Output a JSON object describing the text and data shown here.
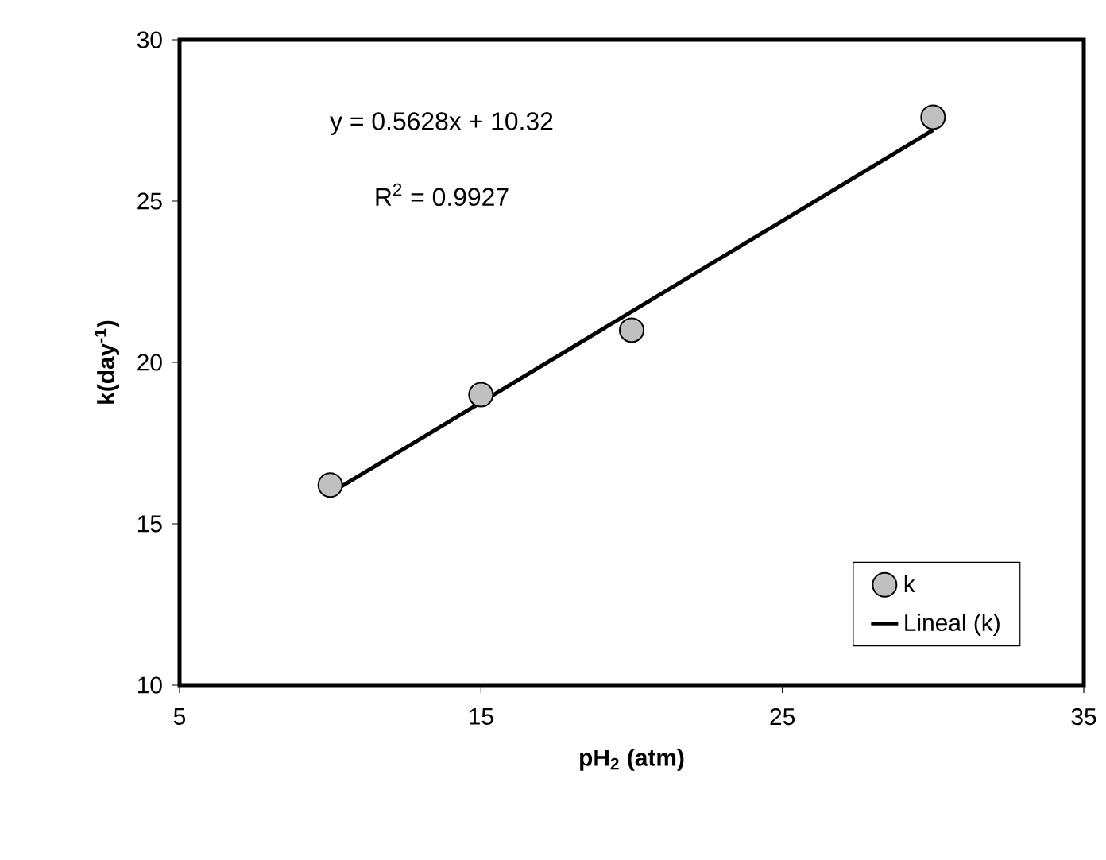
{
  "chart_data": {
    "type": "scatter",
    "xlabel": "pH$_{2}$ (atm)",
    "ylabel": "k(day$^{-1}$)",
    "annotations": [
      "y = 0.5628x + 10.32",
      "R$^{2}$ = 0.9927"
    ],
    "series": [
      {
        "name": "k",
        "color": "#c0c0c0",
        "marker": "circle",
        "x": [
          10,
          15,
          20,
          30
        ],
        "values": [
          16.2,
          19.0,
          21.0,
          27.6
        ]
      },
      {
        "name": "Lineal (k)",
        "type": "line",
        "color": "#000000",
        "marker": "none",
        "line_style": "solid",
        "x": [
          10,
          30
        ],
        "values": [
          15.95,
          27.2
        ]
      }
    ],
    "xlim": [
      5,
      35
    ],
    "xticks": [
      5,
      15,
      25,
      35
    ],
    "ylim": [
      10,
      30
    ],
    "yticks": [
      10,
      15,
      20,
      25,
      30
    ],
    "grid": false,
    "legend": "bottom right"
  }
}
